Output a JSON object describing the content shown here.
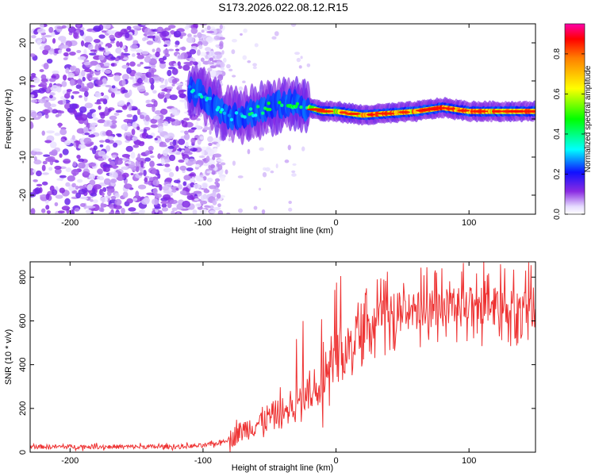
{
  "figure": {
    "title": "S173.2026.022.08.12.R15"
  },
  "chart_data": [
    {
      "type": "heatmap",
      "name": "spectrogram",
      "xlabel": "Height of straight line (km)",
      "ylabel": "Frequency (Hz)",
      "xlim": [
        -230,
        150
      ],
      "ylim": [
        -25,
        25
      ],
      "xticks": [
        -200,
        -100,
        0,
        100
      ],
      "yticks": [
        -20,
        -10,
        0,
        10,
        20
      ],
      "colorbar": {
        "label": "Normalized spectral amplitude",
        "range": [
          0,
          0.95
        ],
        "ticks": [
          0.0,
          0.2,
          0.4,
          0.6,
          0.8
        ]
      },
      "ridge": {
        "description_points_x": [
          -110,
          -100,
          -90,
          -80,
          -70,
          -60,
          -50,
          -40,
          -30,
          -20,
          -10,
          0,
          20,
          40,
          60,
          80,
          100,
          120,
          150
        ],
        "frequency_hz": [
          8,
          6,
          3,
          1,
          1,
          2,
          3,
          4,
          4,
          3,
          2,
          2,
          1,
          1.5,
          2,
          3,
          2,
          2,
          2
        ],
        "peak_amplitude": [
          0.35,
          0.4,
          0.45,
          0.4,
          0.4,
          0.45,
          0.5,
          0.5,
          0.5,
          0.6,
          0.7,
          0.75,
          0.85,
          0.85,
          0.85,
          0.9,
          0.85,
          0.85,
          0.85
        ]
      },
      "noise_region_x": [
        -230,
        -95
      ]
    },
    {
      "type": "line",
      "name": "snr",
      "xlabel": "Height of straight line (km)",
      "ylabel": "SNR (10 * v/v)",
      "xlim": [
        -230,
        150
      ],
      "ylim": [
        0,
        870
      ],
      "xticks": [
        -200,
        -100,
        0,
        100
      ],
      "yticks": [
        0,
        200,
        400,
        600,
        800
      ],
      "color": "#ee3333",
      "trend_x": [
        -230,
        -120,
        -100,
        -90,
        -80,
        -70,
        -60,
        -50,
        -40,
        -30,
        -25,
        -20,
        -15,
        -10,
        -5,
        0,
        10,
        20,
        30,
        40,
        60,
        80,
        100,
        120,
        150
      ],
      "trend_y": [
        25,
        25,
        30,
        40,
        60,
        100,
        130,
        160,
        180,
        220,
        250,
        280,
        300,
        330,
        360,
        420,
        500,
        560,
        600,
        630,
        650,
        660,
        665,
        665,
        660
      ]
    }
  ]
}
